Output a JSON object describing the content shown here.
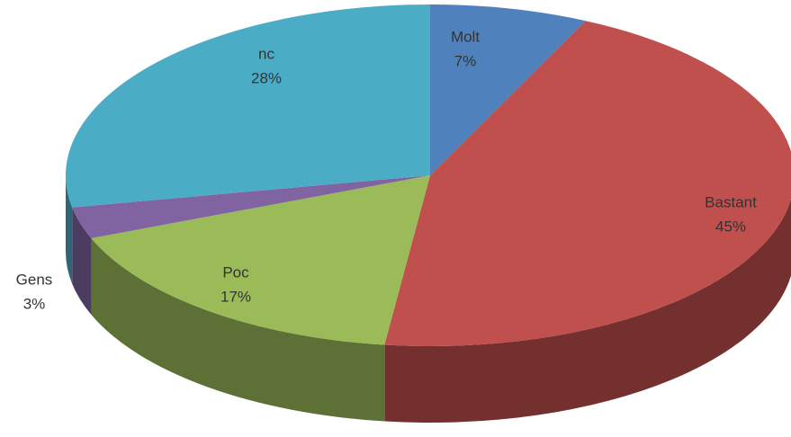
{
  "chart_data": {
    "type": "pie",
    "categories": [
      "Molt",
      "Bastant",
      "Poc",
      "Gens",
      "nc"
    ],
    "values": [
      7,
      45,
      17,
      3,
      28
    ],
    "value_labels": [
      "7%",
      "45%",
      "17%",
      "3%",
      "28%"
    ],
    "colors": [
      "#4f81bd",
      "#c0504d",
      "#9bbb59",
      "#8064a2",
      "#4bacc6"
    ]
  }
}
